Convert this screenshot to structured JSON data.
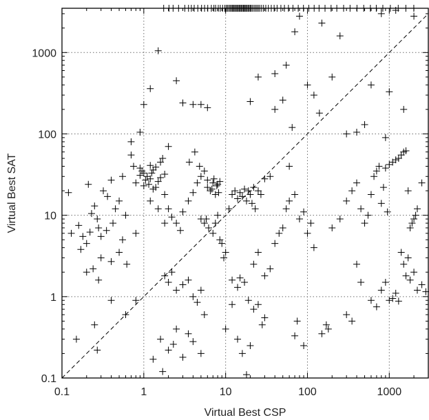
{
  "chart_data": {
    "type": "scatter",
    "xlabel": "Virtual Best CSP",
    "ylabel": "Virtual Best SAT",
    "x_scale": "log",
    "y_scale": "log",
    "xlim": [
      0.1,
      3000
    ],
    "ylim": [
      0.1,
      3500
    ],
    "x_ticks": [
      "0.1",
      "1",
      "10",
      "100",
      "1000"
    ],
    "y_ticks": [
      "0.1",
      "1",
      "10",
      "100",
      "1000"
    ],
    "grid": true,
    "reference_line": "y = x",
    "timeout_rug_y": 3500,
    "timeout_rug_x": [
      1.75,
      2.03,
      2.28,
      2.66,
      3.17,
      3.52,
      3.81,
      4.13,
      4.57,
      5.08,
      5.53,
      6.05,
      6.69,
      7.19,
      7.55,
      8.13,
      8.6,
      9.2,
      9.79,
      10.18,
      10.54,
      10.93,
      11.31,
      11.68,
      12.05,
      12.39,
      12.72,
      13.12,
      13.51,
      13.9,
      14.3,
      14.72,
      15.13,
      15.53,
      16.01,
      16.45,
      16.88,
      17.33,
      17.8,
      18.35,
      18.88,
      19.46,
      20.04,
      20.63,
      21.4,
      22.31,
      23.22,
      24.12,
      25.08,
      26.14,
      27.52,
      29.06,
      30.97,
      33.29,
      36.12,
      39.17,
      42.56,
      47.38,
      52.34,
      58.57,
      66.44,
      77.16,
      89.38,
      103.83,
      120.76,
      138.71,
      164.01,
      194.43,
      228.44,
      276.71,
      331.65,
      402.98,
      487.3,
      588.05,
      693.67,
      834.42,
      1030.7,
      1286.32,
      1595.15,
      1994.45
    ],
    "points": [
      [
        0.12,
        19
      ],
      [
        0.15,
        0.3
      ],
      [
        0.13,
        6
      ],
      [
        0.16,
        7.5
      ],
      [
        0.18,
        5.5
      ],
      [
        0.2,
        4.5
      ],
      [
        0.17,
        3.8
      ],
      [
        0.21,
        24
      ],
      [
        0.22,
        6.2
      ],
      [
        0.23,
        10.5
      ],
      [
        0.24,
        2.2
      ],
      [
        0.2,
        2
      ],
      [
        0.25,
        13
      ],
      [
        0.27,
        9
      ],
      [
        0.28,
        7
      ],
      [
        0.3,
        5.5
      ],
      [
        0.32,
        20
      ],
      [
        0.35,
        6.5
      ],
      [
        0.4,
        27
      ],
      [
        0.36,
        17
      ],
      [
        0.42,
        8
      ],
      [
        0.45,
        12
      ],
      [
        0.5,
        15
      ],
      [
        0.55,
        30
      ],
      [
        0.6,
        10
      ],
      [
        0.62,
        2.5
      ],
      [
        0.7,
        55
      ],
      [
        0.75,
        40
      ],
      [
        0.8,
        25
      ],
      [
        0.9,
        38
      ],
      [
        0.95,
        35
      ],
      [
        1.0,
        33
      ],
      [
        1.1,
        30
      ],
      [
        1.2,
        28
      ],
      [
        1.3,
        36
      ],
      [
        1.4,
        22
      ],
      [
        1.5,
        26
      ],
      [
        1.6,
        45
      ],
      [
        1.7,
        50
      ],
      [
        1.8,
        18
      ],
      [
        0.6,
        0.6
      ],
      [
        0.8,
        0.9
      ],
      [
        0.25,
        0.45
      ],
      [
        0.27,
        0.22
      ],
      [
        0.4,
        2.7
      ],
      [
        0.3,
        3.0
      ],
      [
        0.28,
        1.6
      ],
      [
        0.4,
        0.9
      ],
      [
        0.5,
        3.5
      ],
      [
        0.55,
        5.0
      ],
      [
        1.0,
        23
      ],
      [
        1.2,
        41
      ],
      [
        1.05,
        27
      ],
      [
        1.3,
        21
      ],
      [
        1.15,
        24
      ],
      [
        0.9,
        31
      ],
      [
        1.25,
        33
      ],
      [
        1.4,
        39
      ],
      [
        1.6,
        29
      ],
      [
        1.8,
        32
      ],
      [
        2.0,
        12
      ],
      [
        2.2,
        9.5
      ],
      [
        2.5,
        8
      ],
      [
        2.8,
        6.5
      ],
      [
        3.0,
        11
      ],
      [
        3.5,
        15
      ],
      [
        4.0,
        19
      ],
      [
        4.5,
        25
      ],
      [
        5.0,
        9
      ],
      [
        5.5,
        8
      ],
      [
        1.8,
        1.8
      ],
      [
        2.0,
        1.5
      ],
      [
        2.2,
        2.0
      ],
      [
        2.5,
        1.2
      ],
      [
        3.0,
        1.4
      ],
      [
        3.5,
        1.6
      ],
      [
        4.0,
        1.0
      ],
      [
        4.5,
        0.85
      ],
      [
        5.0,
        1.2
      ],
      [
        5.5,
        0.6
      ],
      [
        1.6,
        0.3
      ],
      [
        2.0,
        0.22
      ],
      [
        2.5,
        0.4
      ],
      [
        3.0,
        0.18
      ],
      [
        3.5,
        0.35
      ],
      [
        4.0,
        0.28
      ],
      [
        5.0,
        0.2
      ],
      [
        1.3,
        0.17
      ],
      [
        1.7,
        0.12
      ],
      [
        2.3,
        0.26
      ],
      [
        6,
        22
      ],
      [
        6.5,
        20
      ],
      [
        7,
        25
      ],
      [
        7.5,
        18
      ],
      [
        8,
        24
      ],
      [
        8.5,
        26
      ],
      [
        7.2,
        28
      ],
      [
        6.8,
        21
      ],
      [
        7.8,
        23
      ],
      [
        8.2,
        19
      ],
      [
        5,
        30
      ],
      [
        5.5,
        35
      ],
      [
        6,
        27
      ],
      [
        4.8,
        40
      ],
      [
        4.2,
        60
      ],
      [
        3.6,
        45
      ],
      [
        5.8,
        9
      ],
      [
        6.2,
        7
      ],
      [
        7.0,
        6
      ],
      [
        7.5,
        8
      ],
      [
        8,
        10
      ],
      [
        8.5,
        5
      ],
      [
        9,
        4.5
      ],
      [
        9.5,
        3.0
      ],
      [
        10,
        3.5
      ],
      [
        11,
        12
      ],
      [
        12,
        18
      ],
      [
        13,
        20
      ],
      [
        14,
        16
      ],
      [
        15,
        19
      ],
      [
        16,
        17
      ],
      [
        17,
        21
      ],
      [
        18,
        15
      ],
      [
        19,
        20
      ],
      [
        20,
        18
      ],
      [
        21,
        14
      ],
      [
        22,
        22
      ],
      [
        23,
        12
      ],
      [
        25,
        20
      ],
      [
        27,
        18
      ],
      [
        10,
        0.4
      ],
      [
        12,
        0.8
      ],
      [
        14,
        0.3
      ],
      [
        16,
        0.2
      ],
      [
        18,
        0.11
      ],
      [
        20,
        0.25
      ],
      [
        22,
        0.7
      ],
      [
        25,
        0.8
      ],
      [
        28,
        0.45
      ],
      [
        30,
        0.55
      ],
      [
        12,
        1.6
      ],
      [
        14,
        1.3
      ],
      [
        15,
        1.7
      ],
      [
        17,
        1.5
      ],
      [
        19,
        0.9
      ],
      [
        22,
        2.5
      ],
      [
        25,
        3.5
      ],
      [
        30,
        1.8
      ],
      [
        35,
        2.2
      ],
      [
        40,
        4.5
      ],
      [
        45,
        6
      ],
      [
        50,
        7
      ],
      [
        55,
        12
      ],
      [
        60,
        15
      ],
      [
        70,
        18
      ],
      [
        80,
        9
      ],
      [
        90,
        11
      ],
      [
        100,
        6
      ],
      [
        110,
        8
      ],
      [
        120,
        4
      ],
      [
        50,
        260
      ],
      [
        40,
        200
      ],
      [
        35,
        30
      ],
      [
        30,
        28
      ],
      [
        60,
        40
      ],
      [
        70,
        1800
      ],
      [
        80,
        2800
      ],
      [
        100,
        400
      ],
      [
        120,
        300
      ],
      [
        140,
        180
      ],
      [
        150,
        0.35
      ],
      [
        170,
        0.45
      ],
      [
        180,
        0.4
      ],
      [
        70,
        0.33
      ],
      [
        75,
        0.5
      ],
      [
        90,
        0.25
      ],
      [
        300,
        0.6
      ],
      [
        350,
        0.5
      ],
      [
        400,
        2.5
      ],
      [
        450,
        1.5
      ],
      [
        200,
        7
      ],
      [
        250,
        9
      ],
      [
        300,
        15
      ],
      [
        350,
        20
      ],
      [
        400,
        25
      ],
      [
        450,
        12
      ],
      [
        500,
        8
      ],
      [
        550,
        10
      ],
      [
        600,
        18
      ],
      [
        650,
        30
      ],
      [
        700,
        35
      ],
      [
        750,
        40
      ],
      [
        800,
        14
      ],
      [
        850,
        22
      ],
      [
        900,
        38
      ],
      [
        950,
        11
      ],
      [
        1000,
        42
      ],
      [
        1100,
        45
      ],
      [
        1200,
        48
      ],
      [
        1300,
        50
      ],
      [
        1400,
        55
      ],
      [
        1500,
        60
      ],
      [
        1600,
        62
      ],
      [
        1700,
        20
      ],
      [
        1800,
        7
      ],
      [
        1900,
        8
      ],
      [
        2000,
        9
      ],
      [
        2100,
        10
      ],
      [
        2200,
        12
      ],
      [
        2500,
        25
      ],
      [
        600,
        0.9
      ],
      [
        700,
        0.75
      ],
      [
        800,
        1.2
      ],
      [
        900,
        1.5
      ],
      [
        1000,
        0.9
      ],
      [
        1100,
        0.95
      ],
      [
        1200,
        1.1
      ],
      [
        1300,
        0.88
      ],
      [
        1400,
        3.5
      ],
      [
        1500,
        2.5
      ],
      [
        1600,
        1.8
      ],
      [
        1700,
        3.0
      ],
      [
        1800,
        1.6
      ],
      [
        2000,
        2.0
      ],
      [
        2200,
        1.2
      ],
      [
        2500,
        1.4
      ],
      [
        2800,
        1.15
      ],
      [
        1000,
        330
      ],
      [
        1500,
        200
      ],
      [
        2000,
        2800
      ],
      [
        150,
        2300
      ],
      [
        200,
        500
      ],
      [
        250,
        1600
      ],
      [
        300,
        100
      ],
      [
        400,
        105
      ],
      [
        500,
        130
      ],
      [
        600,
        400
      ],
      [
        800,
        3000
      ],
      [
        900,
        90
      ],
      [
        1200,
        3300
      ],
      [
        2.5,
        450
      ],
      [
        3,
        240
      ],
      [
        4,
        230
      ],
      [
        5,
        230
      ],
      [
        6,
        210
      ],
      [
        1.0,
        230
      ],
      [
        1.2,
        360
      ],
      [
        1.5,
        1050
      ],
      [
        20,
        250
      ],
      [
        25,
        500
      ],
      [
        40,
        550
      ],
      [
        55,
        700
      ],
      [
        65,
        120
      ],
      [
        0.9,
        105
      ],
      [
        0.7,
        80
      ],
      [
        2.0,
        70
      ],
      [
        1.2,
        15
      ],
      [
        1.5,
        12
      ],
      [
        1.8,
        8
      ],
      [
        0.8,
        6
      ]
    ]
  }
}
